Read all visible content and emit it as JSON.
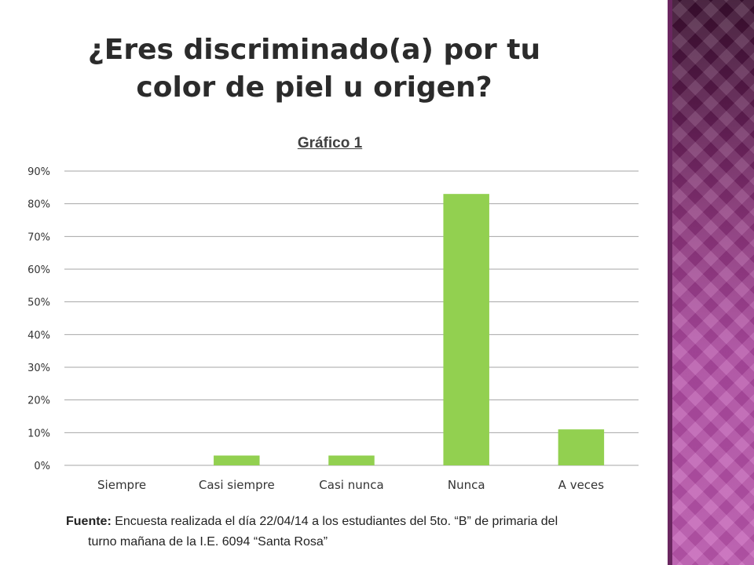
{
  "title": "¿Eres discriminado(a) por tu color de piel u origen?",
  "colors": {
    "bar": "#92d050",
    "grid": "#a6a6a6",
    "sideband": "#a8449c"
  },
  "chart_data": {
    "type": "bar",
    "title": "Gráfico 1",
    "categories": [
      "Siempre",
      "Casi siempre",
      "Casi nunca",
      "Nunca",
      "A veces"
    ],
    "values": [
      0,
      3,
      3,
      83,
      11
    ],
    "unit": "%",
    "ylim": [
      0,
      90
    ],
    "yticks": [
      0,
      10,
      20,
      30,
      40,
      50,
      60,
      70,
      80,
      90
    ],
    "ytick_labels": [
      "0%",
      "10%",
      "20%",
      "30%",
      "40%",
      "50%",
      "60%",
      "70%",
      "80%",
      "90%"
    ],
    "grid": true,
    "legend": "none"
  },
  "source": {
    "label": "Fuente:",
    "line1": "Encuesta realizada el día 22/04/14 a los estudiantes del 5to. “B”  de primaria del",
    "line2": "turno mañana de la I.E. 6094 “Santa Rosa”"
  }
}
